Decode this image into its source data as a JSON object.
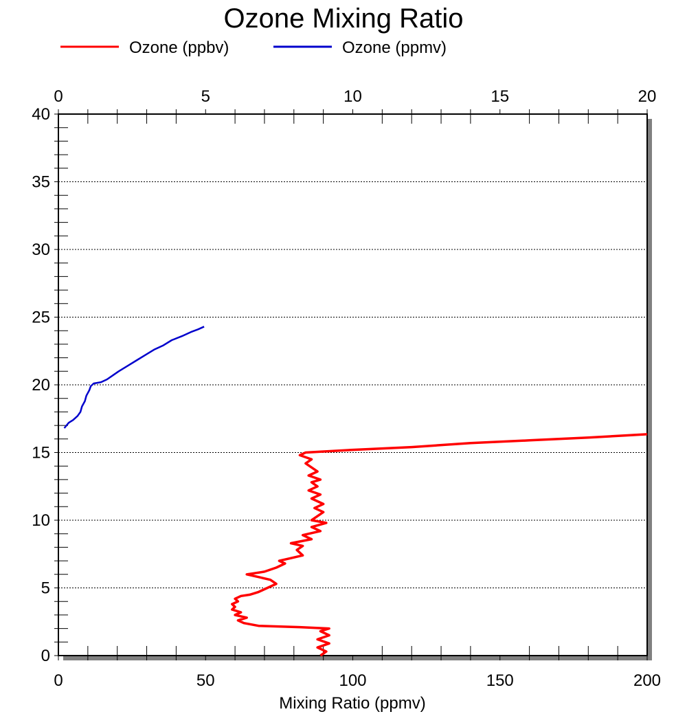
{
  "chart_data": {
    "type": "line",
    "title": "Ozone Mixing Ratio",
    "xlabel": "Mixing Ratio (ppmv)",
    "ylabel": "",
    "bottom_axis": {
      "range": [
        0,
        200
      ],
      "ticks": [
        0,
        50,
        100,
        150,
        200
      ]
    },
    "top_axis": {
      "range": [
        0,
        20
      ],
      "ticks": [
        0,
        5,
        10,
        15,
        20
      ]
    },
    "y_axis": {
      "range": [
        0,
        40
      ],
      "ticks": [
        0,
        5,
        10,
        15,
        20,
        25,
        30,
        35,
        40
      ]
    },
    "grid": "horizontal dotted",
    "legend_position": "top",
    "legend": [
      {
        "label": "Ozone (ppbv)",
        "color": "#ff0000"
      },
      {
        "label": "Ozone (ppmv)",
        "color": "#0000cc"
      }
    ],
    "series": [
      {
        "name": "Ozone (ppbv)",
        "color": "#ff0000",
        "axis": "bottom",
        "points": [
          [
            89,
            0
          ],
          [
            91,
            0.3
          ],
          [
            88,
            0.6
          ],
          [
            92,
            0.9
          ],
          [
            88,
            1.2
          ],
          [
            92,
            1.5
          ],
          [
            89,
            1.8
          ],
          [
            92,
            2.0
          ],
          [
            82,
            2.1
          ],
          [
            68,
            2.2
          ],
          [
            63,
            2.4
          ],
          [
            61,
            2.6
          ],
          [
            64,
            2.8
          ],
          [
            60,
            3.0
          ],
          [
            62,
            3.2
          ],
          [
            59,
            3.4
          ],
          [
            60,
            3.6
          ],
          [
            59,
            3.8
          ],
          [
            61,
            4.0
          ],
          [
            60,
            4.2
          ],
          [
            62,
            4.4
          ],
          [
            65,
            4.5
          ],
          [
            68,
            4.7
          ],
          [
            71,
            5.0
          ],
          [
            74,
            5.3
          ],
          [
            72,
            5.6
          ],
          [
            68,
            5.8
          ],
          [
            64,
            6.0
          ],
          [
            70,
            6.2
          ],
          [
            74,
            6.5
          ],
          [
            77,
            6.8
          ],
          [
            75,
            7.0
          ],
          [
            79,
            7.2
          ],
          [
            83,
            7.4
          ],
          [
            81,
            7.8
          ],
          [
            83,
            8.1
          ],
          [
            79,
            8.3
          ],
          [
            86,
            8.6
          ],
          [
            83,
            8.9
          ],
          [
            89,
            9.2
          ],
          [
            86,
            9.5
          ],
          [
            91,
            9.8
          ],
          [
            86,
            10.0
          ],
          [
            88,
            10.3
          ],
          [
            90,
            10.6
          ],
          [
            87,
            10.9
          ],
          [
            90,
            11.2
          ],
          [
            86,
            11.6
          ],
          [
            89,
            11.9
          ],
          [
            85,
            12.2
          ],
          [
            88,
            12.5
          ],
          [
            86,
            12.8
          ],
          [
            89,
            13.0
          ],
          [
            85,
            13.3
          ],
          [
            88,
            13.6
          ],
          [
            86,
            13.9
          ],
          [
            84,
            14.2
          ],
          [
            86,
            14.5
          ],
          [
            82,
            14.8
          ],
          [
            84,
            15.0
          ],
          [
            100,
            15.2
          ],
          [
            120,
            15.4
          ],
          [
            140,
            15.7
          ],
          [
            160,
            15.9
          ],
          [
            180,
            16.1
          ],
          [
            200,
            16.35
          ]
        ]
      },
      {
        "name": "Ozone (ppmv)",
        "color": "#0000cc",
        "axis": "top",
        "points": [
          [
            0.2,
            16.8
          ],
          [
            0.35,
            17.2
          ],
          [
            0.5,
            17.4
          ],
          [
            0.65,
            17.7
          ],
          [
            0.75,
            18.0
          ],
          [
            0.8,
            18.4
          ],
          [
            0.9,
            18.8
          ],
          [
            0.95,
            19.2
          ],
          [
            1.05,
            19.6
          ],
          [
            1.1,
            19.9
          ],
          [
            1.2,
            20.1
          ],
          [
            1.45,
            20.2
          ],
          [
            1.65,
            20.4
          ],
          [
            1.85,
            20.7
          ],
          [
            2.05,
            21.0
          ],
          [
            2.35,
            21.4
          ],
          [
            2.65,
            21.8
          ],
          [
            2.95,
            22.2
          ],
          [
            3.25,
            22.6
          ],
          [
            3.55,
            22.9
          ],
          [
            3.85,
            23.3
          ],
          [
            4.2,
            23.6
          ],
          [
            4.5,
            23.9
          ],
          [
            4.75,
            24.1
          ],
          [
            4.95,
            24.3
          ]
        ]
      }
    ]
  }
}
